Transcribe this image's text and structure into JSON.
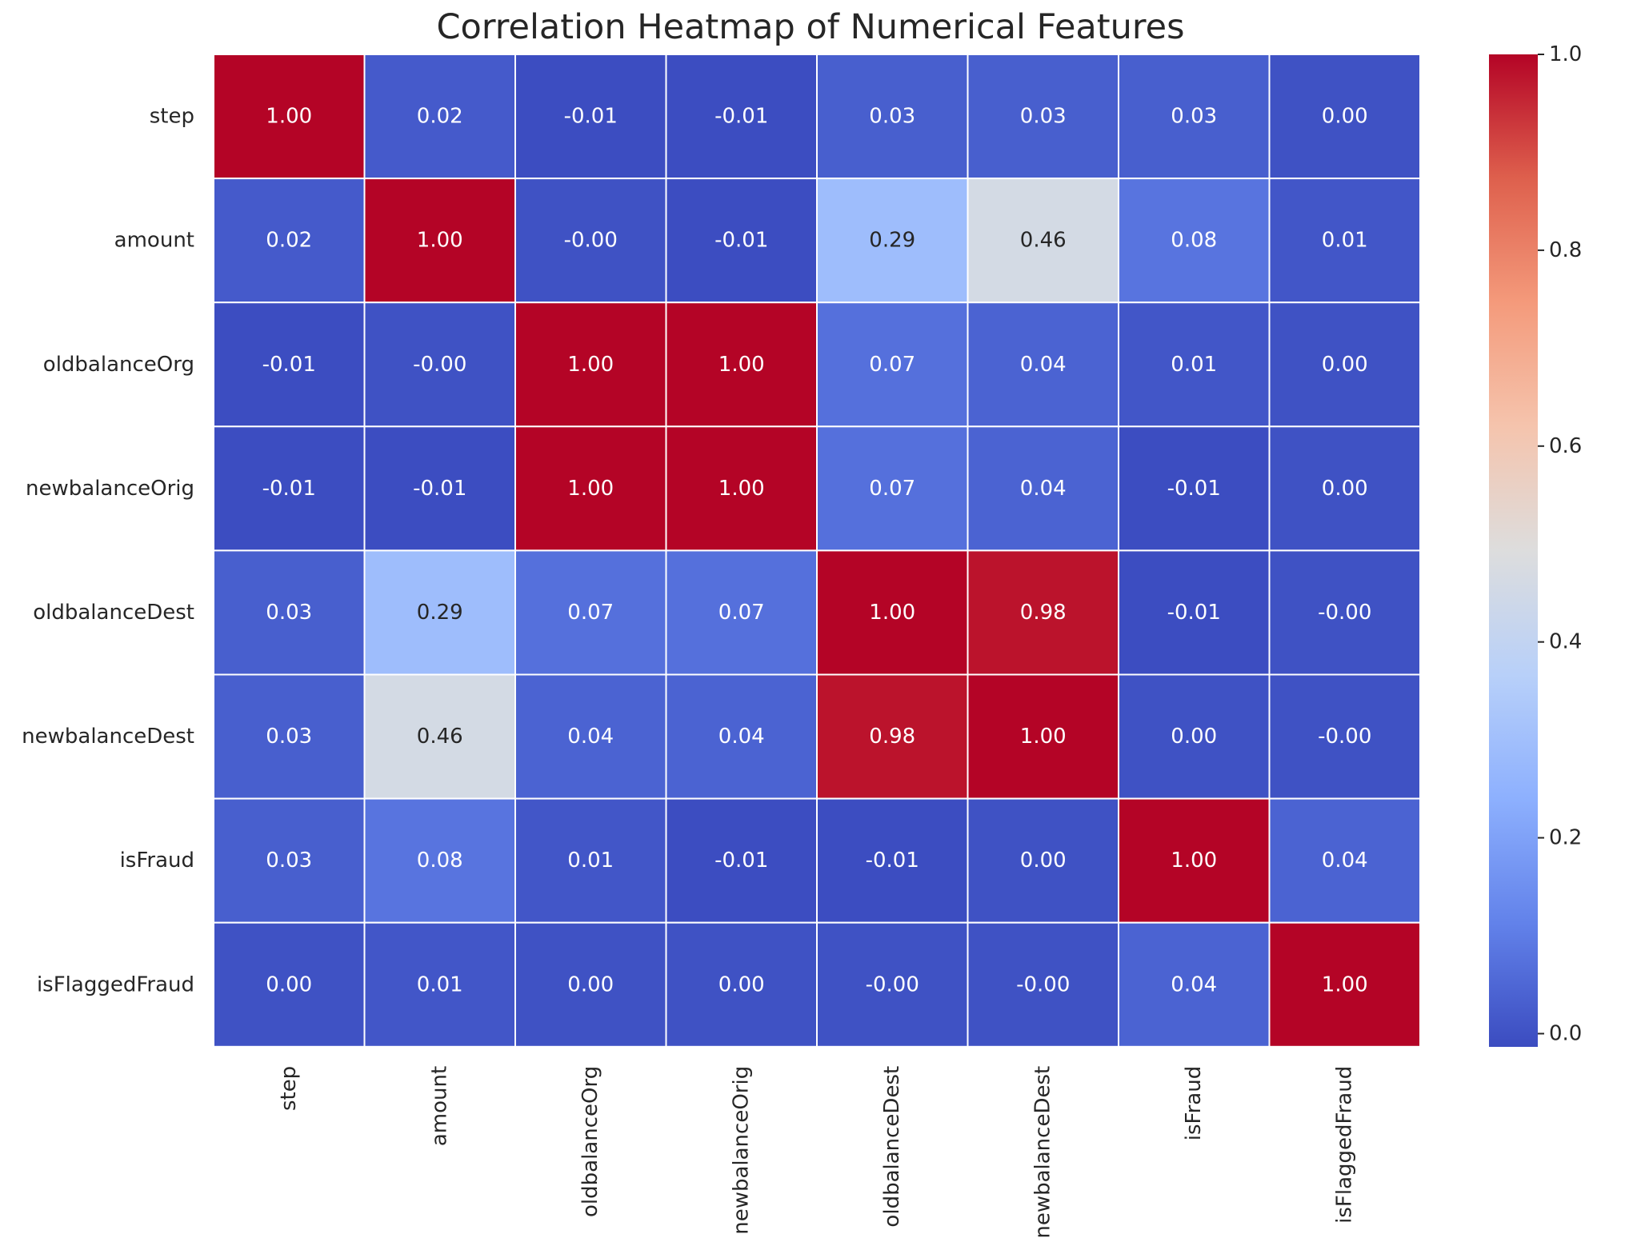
{
  "chart_data": {
    "type": "heatmap",
    "title": "Correlation Heatmap of Numerical Features",
    "xlabel": "",
    "ylabel": "",
    "row_labels": [
      "step",
      "amount",
      "oldbalanceOrg",
      "newbalanceOrig",
      "oldbalanceDest",
      "newbalanceDest",
      "isFraud",
      "isFlaggedFraud"
    ],
    "column_labels": [
      "step",
      "amount",
      "oldbalanceOrg",
      "newbalanceOrig",
      "oldbalanceDest",
      "newbalanceDest",
      "isFraud",
      "isFlaggedFraud"
    ],
    "values": [
      [
        1.0,
        0.02,
        -0.01,
        -0.01,
        0.03,
        0.03,
        0.03,
        0.0
      ],
      [
        0.02,
        1.0,
        -0.0,
        -0.01,
        0.29,
        0.46,
        0.08,
        0.01
      ],
      [
        -0.01,
        -0.0,
        1.0,
        1.0,
        0.07,
        0.04,
        0.01,
        0.0
      ],
      [
        -0.01,
        -0.01,
        1.0,
        1.0,
        0.07,
        0.04,
        -0.01,
        0.0
      ],
      [
        0.03,
        0.29,
        0.07,
        0.07,
        1.0,
        0.98,
        -0.01,
        -0.0
      ],
      [
        0.03,
        0.46,
        0.04,
        0.04,
        0.98,
        1.0,
        0.0,
        -0.0
      ],
      [
        0.03,
        0.08,
        0.01,
        -0.01,
        -0.01,
        0.0,
        1.0,
        0.04
      ],
      [
        0.0,
        0.01,
        0.0,
        0.0,
        -0.0,
        -0.0,
        0.04,
        1.0
      ]
    ],
    "annotations": [
      [
        "1.00",
        "0.02",
        "-0.01",
        "-0.01",
        "0.03",
        "0.03",
        "0.03",
        "0.00"
      ],
      [
        "0.02",
        "1.00",
        "-0.00",
        "-0.01",
        "0.29",
        "0.46",
        "0.08",
        "0.01"
      ],
      [
        "-0.01",
        "-0.00",
        "1.00",
        "1.00",
        "0.07",
        "0.04",
        "0.01",
        "0.00"
      ],
      [
        "-0.01",
        "-0.01",
        "1.00",
        "1.00",
        "0.07",
        "0.04",
        "-0.01",
        "0.00"
      ],
      [
        "0.03",
        "0.29",
        "0.07",
        "0.07",
        "1.00",
        "0.98",
        "-0.01",
        "-0.00"
      ],
      [
        "0.03",
        "0.46",
        "0.04",
        "0.04",
        "0.98",
        "1.00",
        "0.00",
        "-0.00"
      ],
      [
        "0.03",
        "0.08",
        "0.01",
        "-0.01",
        "-0.01",
        "0.00",
        "1.00",
        "0.04"
      ],
      [
        "0.00",
        "0.01",
        "0.00",
        "0.00",
        "-0.00",
        "-0.00",
        "0.04",
        "1.00"
      ]
    ],
    "colormap": "coolwarm",
    "color_range": [
      -0.0135,
      1.0
    ],
    "colorbar": {
      "ticks": [
        0.0,
        0.2,
        0.4,
        0.6,
        0.8,
        1.0
      ],
      "tick_labels": [
        "0.0",
        "0.2",
        "0.4",
        "0.6",
        "0.8",
        "1.0"
      ],
      "placement": "right"
    },
    "grid": false
  }
}
